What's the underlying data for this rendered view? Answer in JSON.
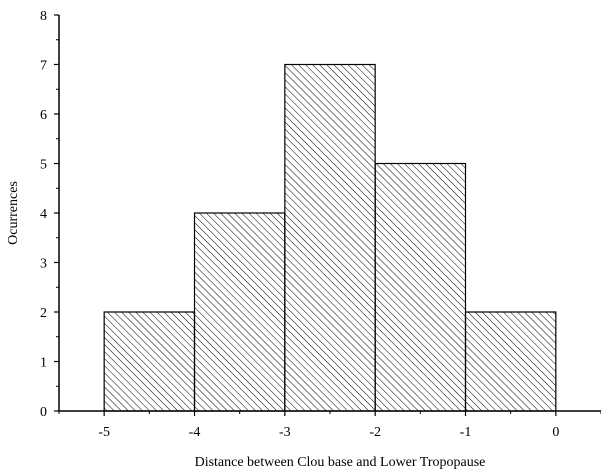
{
  "chart_data": {
    "type": "bar",
    "xlabel": "Distance between Clou base and Lower Tropopause",
    "ylabel": "Ocurrences",
    "xlim": [
      -5.5,
      0.5
    ],
    "ylim": [
      0,
      8
    ],
    "x_ticks": [
      "-5",
      "-4",
      "-3",
      "-2",
      "-1",
      "0"
    ],
    "y_ticks": [
      "0",
      "1",
      "2",
      "3",
      "4",
      "5",
      "6",
      "7",
      "8"
    ],
    "bins": [
      {
        "from": -5,
        "to": -4,
        "value": 2
      },
      {
        "from": -4,
        "to": -3,
        "value": 4
      },
      {
        "from": -3,
        "to": -2,
        "value": 7
      },
      {
        "from": -2,
        "to": -1,
        "value": 5
      },
      {
        "from": -1,
        "to": 0,
        "value": 2
      }
    ],
    "bar_fill": "hatched",
    "bar_color": "#000000",
    "grid": false
  }
}
